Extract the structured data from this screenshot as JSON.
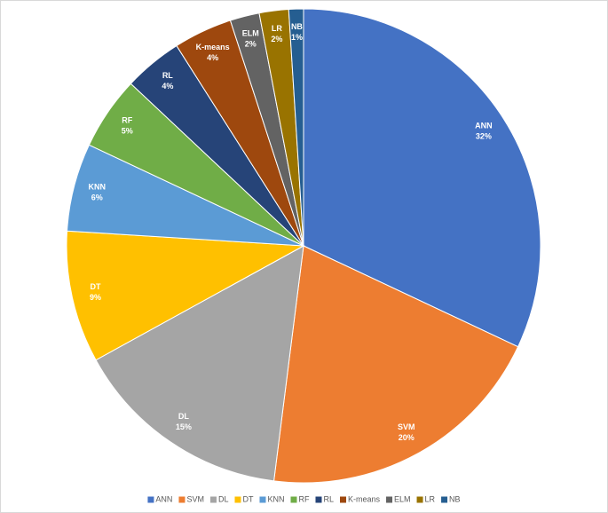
{
  "chart_data": {
    "type": "pie",
    "categories": [
      "ANN",
      "SVM",
      "DL",
      "DT",
      "KNN",
      "RF",
      "RL",
      "K-means",
      "ELM",
      "LR",
      "NB"
    ],
    "values": [
      32,
      20,
      15,
      9,
      6,
      5,
      4,
      4,
      2,
      2,
      1
    ],
    "value_labels": [
      "32%",
      "20%",
      "15%",
      "9%",
      "6%",
      "5%",
      "4%",
      "4%",
      "2%",
      "2%",
      "1%"
    ],
    "colors": [
      "#4472c4",
      "#ed7d31",
      "#a5a5a5",
      "#ffc000",
      "#5b9bd5",
      "#70ad47",
      "#264478",
      "#9e480e",
      "#636363",
      "#997300",
      "#255e91"
    ],
    "legend": "bottom"
  }
}
